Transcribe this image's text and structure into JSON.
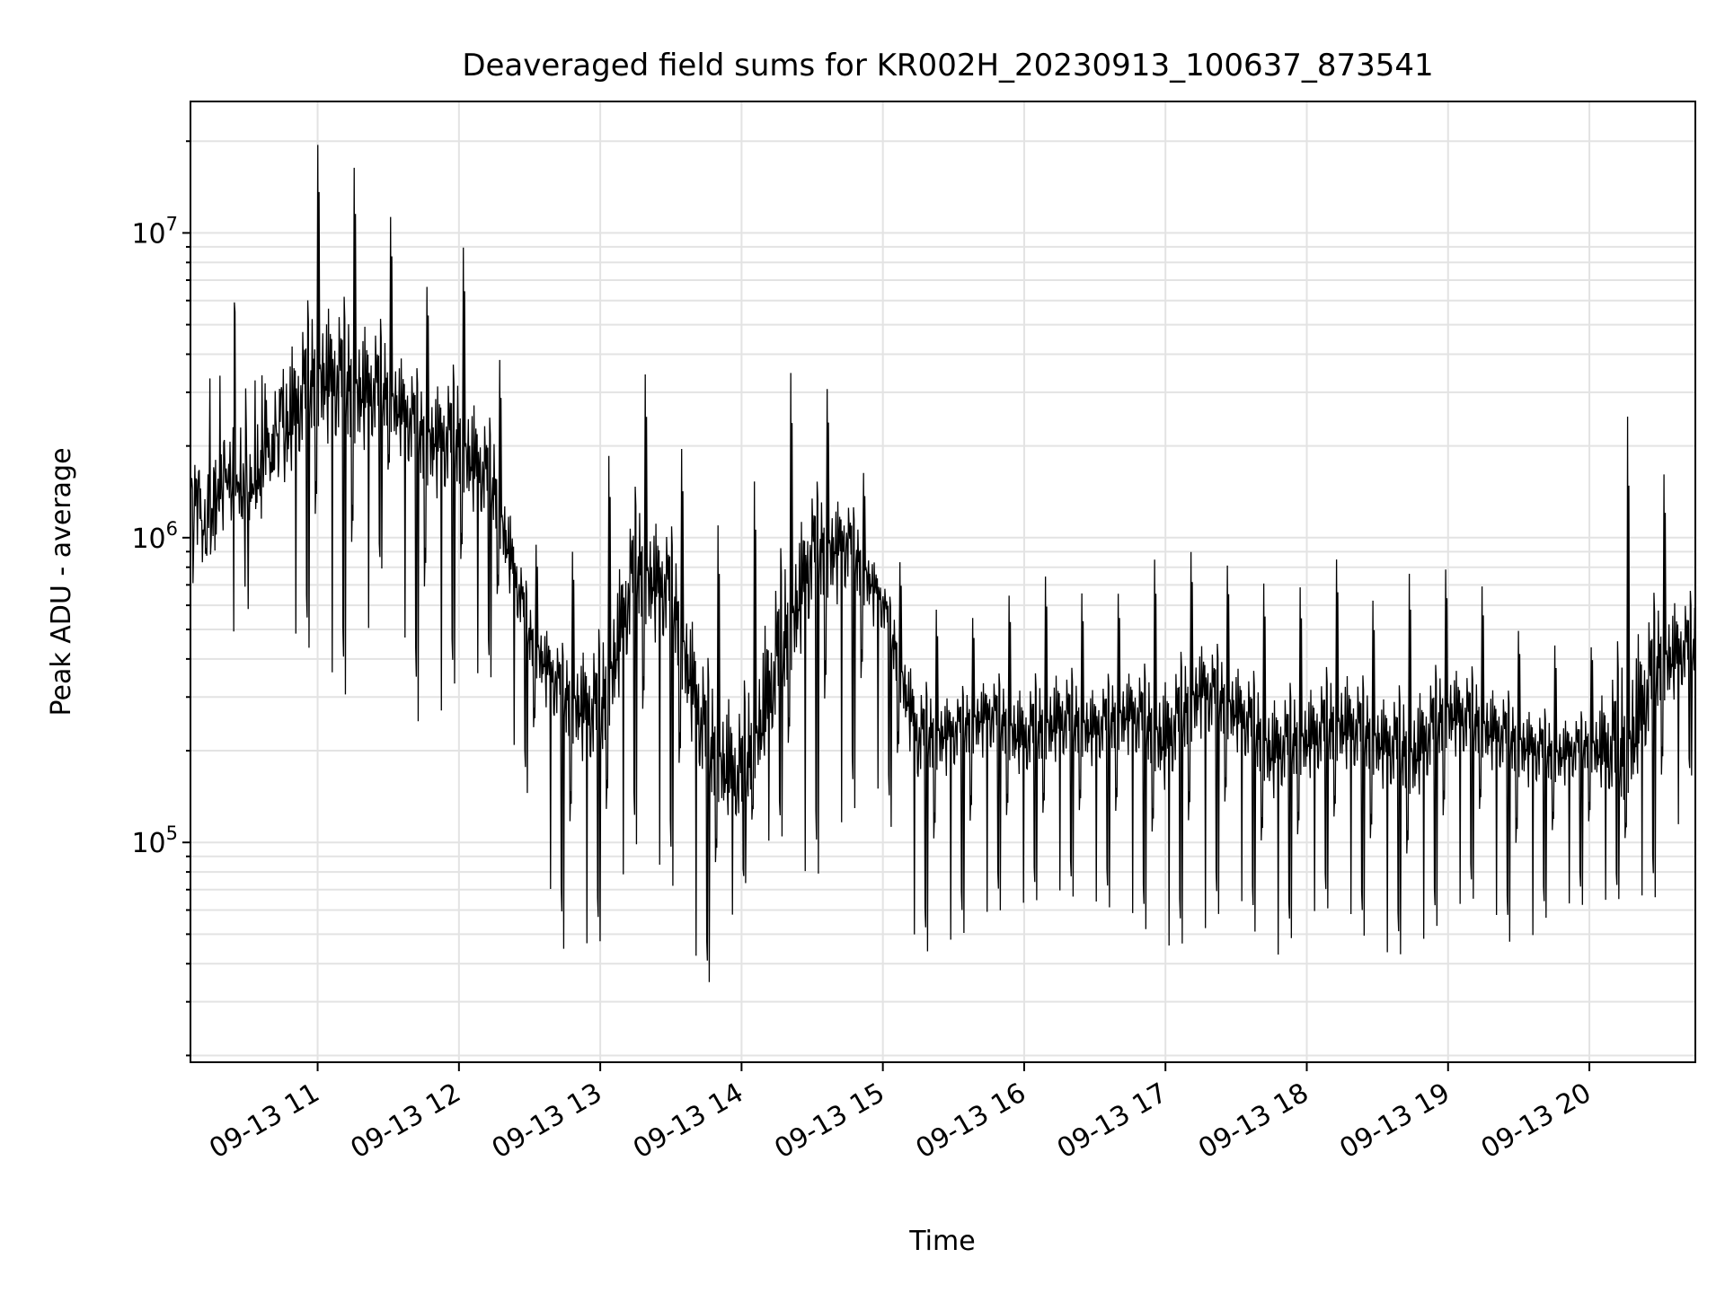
{
  "chart_data": {
    "type": "line",
    "title": "Deaveraged field sums for KR002H_20230913_100637_873541",
    "xlabel": "Time",
    "ylabel": "Peak ADU - average",
    "y_scale": "log",
    "ylim": [
      19000,
      27000000
    ],
    "xlim": [
      "2023-09-13 10:06",
      "2023-09-13 20:45"
    ],
    "grid": true,
    "x_tick_labels": [
      "09-13 11",
      "09-13 12",
      "09-13 13",
      "09-13 14",
      "09-13 15",
      "09-13 16",
      "09-13 17",
      "09-13 18",
      "09-13 19",
      "09-13 20"
    ],
    "y_tick_labels": [
      {
        "value": 100000,
        "base": "10",
        "exp": "5"
      },
      {
        "value": 1000000,
        "base": "10",
        "exp": "6"
      },
      {
        "value": 10000000,
        "base": "10",
        "exp": "7"
      }
    ],
    "line_color": "#000000",
    "series": [
      {
        "x": [
          "2023-09-13 10:06",
          "2023-09-13 10:15",
          "2023-09-13 10:30",
          "2023-09-13 10:45",
          "2023-09-13 11:00",
          "2023-09-13 11:15",
          "2023-09-13 11:30",
          "2023-09-13 11:45",
          "2023-09-13 12:00",
          "2023-09-13 12:15",
          "2023-09-13 12:30",
          "2023-09-13 12:45",
          "2023-09-13 13:00",
          "2023-09-13 13:15",
          "2023-09-13 13:30",
          "2023-09-13 13:45",
          "2023-09-13 14:00",
          "2023-09-13 14:15",
          "2023-09-13 14:30",
          "2023-09-13 14:45",
          "2023-09-13 15:00",
          "2023-09-13 15:15",
          "2023-09-13 15:30",
          "2023-09-13 15:45",
          "2023-09-13 16:00",
          "2023-09-13 16:15",
          "2023-09-13 16:30",
          "2023-09-13 16:45",
          "2023-09-13 17:00",
          "2023-09-13 17:15",
          "2023-09-13 17:30",
          "2023-09-13 17:45",
          "2023-09-13 18:00",
          "2023-09-13 18:15",
          "2023-09-13 18:30",
          "2023-09-13 18:45",
          "2023-09-13 19:00",
          "2023-09-13 19:15",
          "2023-09-13 19:30",
          "2023-09-13 19:45",
          "2023-09-13 20:00",
          "2023-09-13 20:15",
          "2023-09-13 20:30",
          "2023-09-13 20:45"
        ],
        "values": [
          1200000,
          1300000,
          1500000,
          1900000,
          3000000,
          2700000,
          2600000,
          2000000,
          1800000,
          1300000,
          450000,
          280000,
          220000,
          700000,
          600000,
          180000,
          130000,
          300000,
          800000,
          900000,
          600000,
          200000,
          220000,
          250000,
          200000,
          230000,
          220000,
          250000,
          190000,
          300000,
          250000,
          180000,
          200000,
          220000,
          200000,
          170000,
          250000,
          220000,
          200000,
          180000,
          200000,
          150000,
          350000,
          400000
        ],
        "envelope_max": [
          3000000,
          4500000,
          7000000,
          13000000,
          20000000,
          17000000,
          12000000,
          6500000,
          10000000,
          5000000,
          1000000,
          800000,
          1500000,
          4000000,
          2500000,
          1200000,
          1000000,
          3500000,
          3700000,
          2500000,
          1000000,
          700000,
          500000,
          600000,
          700000,
          800000,
          600000,
          700000,
          950000,
          900000,
          800000,
          700000,
          700000,
          900000,
          600000,
          800000,
          800000,
          700000,
          500000,
          450000,
          400000,
          2700000,
          1700000,
          1300000
        ],
        "envelope_min": [
          150000,
          400000,
          500000,
          450000,
          330000,
          220000,
          900000,
          150000,
          300000,
          300000,
          120000,
          35000,
          40000,
          80000,
          60000,
          27000,
          65000,
          100000,
          55000,
          100000,
          130000,
          36000,
          40000,
          50000,
          55000,
          60000,
          55000,
          50000,
          38000,
          40000,
          60000,
          33000,
          50000,
          55000,
          36000,
          37000,
          50000,
          60000,
          35000,
          55000,
          55000,
          60000,
          55000,
          170000
        ]
      }
    ]
  }
}
